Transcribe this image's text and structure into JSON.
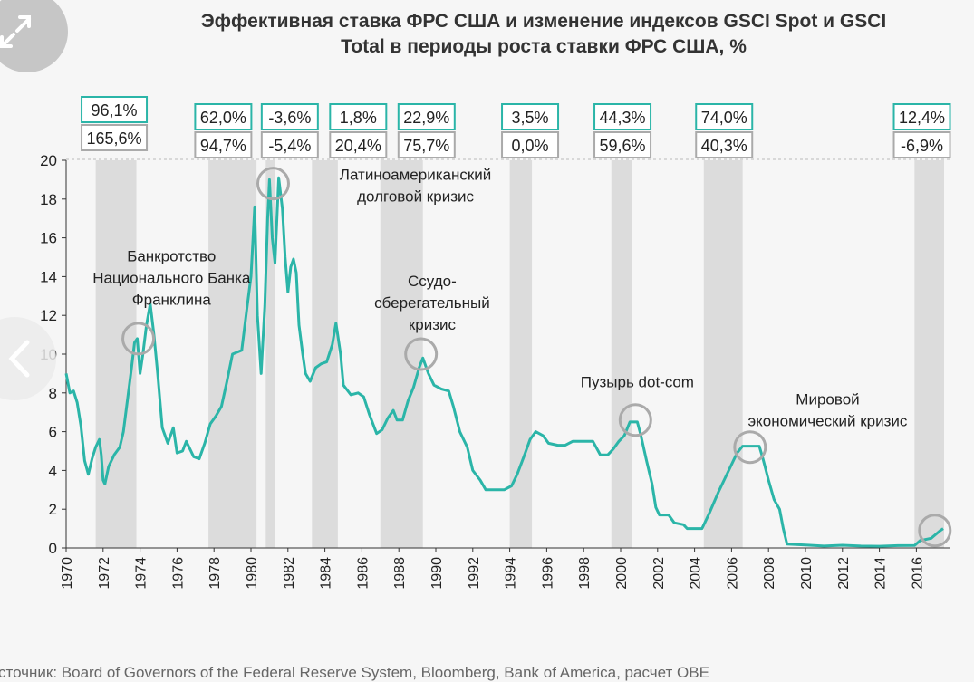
{
  "chart_data": {
    "type": "line",
    "title": "Эффективная ставка ФРС США и изменение индексов GSCI Spot и GSCI Total в периоды роста ставки ФРС США, %",
    "title_lines": [
      "Эффективная ставка ФРС США и изменение индексов GSCI Spot и GSCI",
      "Total в периоды роста ставки ФРС США, %"
    ],
    "xlim": [
      1970,
      2017.7
    ],
    "ylim": [
      0,
      20
    ],
    "x_ticks": [
      "1970",
      "1972",
      "1974",
      "1976",
      "1978",
      "1980",
      "1982",
      "1984",
      "1986",
      "1988",
      "1990",
      "1992",
      "1994",
      "1996",
      "1998",
      "2000",
      "2002",
      "2004",
      "2006",
      "2008",
      "2010",
      "2012",
      "2014",
      "2016"
    ],
    "y_ticks": [
      "0",
      "2",
      "4",
      "6",
      "8",
      "10",
      "12",
      "14",
      "16",
      "18",
      "20"
    ],
    "grid": false,
    "line_color": "#2bb5a8",
    "shade_color": "#dcdcdc",
    "series": [
      {
        "points": [
          [
            1970.0,
            9.0
          ],
          [
            1970.2,
            8.0
          ],
          [
            1970.4,
            8.1
          ],
          [
            1970.6,
            7.5
          ],
          [
            1970.8,
            6.3
          ],
          [
            1971.0,
            4.5
          ],
          [
            1971.2,
            3.8
          ],
          [
            1971.4,
            4.6
          ],
          [
            1971.6,
            5.2
          ],
          [
            1971.8,
            5.6
          ],
          [
            1971.9,
            4.8
          ],
          [
            1972.0,
            3.5
          ],
          [
            1972.1,
            3.3
          ],
          [
            1972.3,
            4.2
          ],
          [
            1972.6,
            4.8
          ],
          [
            1972.9,
            5.2
          ],
          [
            1973.1,
            6.0
          ],
          [
            1973.3,
            7.5
          ],
          [
            1973.5,
            9.0
          ],
          [
            1973.7,
            10.6
          ],
          [
            1973.85,
            10.8
          ],
          [
            1974.0,
            9.0
          ],
          [
            1974.15,
            10.0
          ],
          [
            1974.35,
            11.5
          ],
          [
            1974.55,
            12.6
          ],
          [
            1974.75,
            11.0
          ],
          [
            1974.95,
            9.0
          ],
          [
            1975.2,
            6.2
          ],
          [
            1975.5,
            5.4
          ],
          [
            1975.8,
            6.2
          ],
          [
            1976.0,
            4.9
          ],
          [
            1976.3,
            5.0
          ],
          [
            1976.5,
            5.5
          ],
          [
            1976.9,
            4.7
          ],
          [
            1977.2,
            4.6
          ],
          [
            1977.5,
            5.4
          ],
          [
            1977.8,
            6.4
          ],
          [
            1978.1,
            6.8
          ],
          [
            1978.4,
            7.3
          ],
          [
            1978.7,
            8.6
          ],
          [
            1979.0,
            10.0
          ],
          [
            1979.5,
            10.2
          ],
          [
            1979.8,
            12.5
          ],
          [
            1980.0,
            14.0
          ],
          [
            1980.2,
            17.6
          ],
          [
            1980.35,
            12.0
          ],
          [
            1980.55,
            9.0
          ],
          [
            1980.75,
            12.5
          ],
          [
            1980.9,
            17.0
          ],
          [
            1981.0,
            19.0
          ],
          [
            1981.15,
            16.0
          ],
          [
            1981.3,
            14.7
          ],
          [
            1981.5,
            19.1
          ],
          [
            1981.7,
            17.5
          ],
          [
            1981.85,
            15.0
          ],
          [
            1982.0,
            13.2
          ],
          [
            1982.15,
            14.5
          ],
          [
            1982.3,
            14.9
          ],
          [
            1982.45,
            14.2
          ],
          [
            1982.6,
            11.5
          ],
          [
            1982.8,
            10.0
          ],
          [
            1982.95,
            9.0
          ],
          [
            1983.2,
            8.6
          ],
          [
            1983.5,
            9.3
          ],
          [
            1983.8,
            9.5
          ],
          [
            1984.1,
            9.6
          ],
          [
            1984.4,
            10.5
          ],
          [
            1984.6,
            11.6
          ],
          [
            1984.85,
            10.0
          ],
          [
            1985.0,
            8.4
          ],
          [
            1985.4,
            7.9
          ],
          [
            1985.8,
            8.0
          ],
          [
            1986.1,
            7.8
          ],
          [
            1986.4,
            6.9
          ],
          [
            1986.8,
            5.9
          ],
          [
            1987.1,
            6.1
          ],
          [
            1987.4,
            6.7
          ],
          [
            1987.7,
            7.1
          ],
          [
            1987.9,
            6.6
          ],
          [
            1988.2,
            6.6
          ],
          [
            1988.5,
            7.6
          ],
          [
            1988.8,
            8.3
          ],
          [
            1989.1,
            9.3
          ],
          [
            1989.3,
            9.8
          ],
          [
            1989.6,
            9.0
          ],
          [
            1989.9,
            8.4
          ],
          [
            1990.3,
            8.2
          ],
          [
            1990.7,
            8.1
          ],
          [
            1990.95,
            7.3
          ],
          [
            1991.3,
            6.0
          ],
          [
            1991.7,
            5.2
          ],
          [
            1992.0,
            4.0
          ],
          [
            1992.4,
            3.5
          ],
          [
            1992.7,
            3.0
          ],
          [
            1993.2,
            3.0
          ],
          [
            1993.7,
            3.0
          ],
          [
            1994.1,
            3.2
          ],
          [
            1994.4,
            3.8
          ],
          [
            1994.8,
            4.8
          ],
          [
            1995.1,
            5.6
          ],
          [
            1995.4,
            6.0
          ],
          [
            1995.8,
            5.8
          ],
          [
            1996.1,
            5.4
          ],
          [
            1996.6,
            5.3
          ],
          [
            1997.0,
            5.3
          ],
          [
            1997.4,
            5.5
          ],
          [
            1997.9,
            5.5
          ],
          [
            1998.5,
            5.5
          ],
          [
            1998.9,
            4.8
          ],
          [
            1999.3,
            4.8
          ],
          [
            1999.6,
            5.1
          ],
          [
            1999.9,
            5.5
          ],
          [
            2000.2,
            5.8
          ],
          [
            2000.5,
            6.5
          ],
          [
            2000.9,
            6.5
          ],
          [
            2001.1,
            5.8
          ],
          [
            2001.4,
            4.5
          ],
          [
            2001.7,
            3.3
          ],
          [
            2001.9,
            2.1
          ],
          [
            2002.1,
            1.7
          ],
          [
            2002.6,
            1.7
          ],
          [
            2002.9,
            1.3
          ],
          [
            2003.4,
            1.2
          ],
          [
            2003.6,
            1.0
          ],
          [
            2004.4,
            1.0
          ],
          [
            2004.8,
            1.8
          ],
          [
            2005.3,
            2.9
          ],
          [
            2005.8,
            3.9
          ],
          [
            2006.3,
            4.9
          ],
          [
            2006.6,
            5.25
          ],
          [
            2007.5,
            5.25
          ],
          [
            2007.7,
            4.6
          ],
          [
            2008.0,
            3.5
          ],
          [
            2008.3,
            2.5
          ],
          [
            2008.6,
            2.0
          ],
          [
            2008.8,
            1.0
          ],
          [
            2009.0,
            0.2
          ],
          [
            2010.0,
            0.15
          ],
          [
            2011.0,
            0.1
          ],
          [
            2012.0,
            0.14
          ],
          [
            2013.0,
            0.1
          ],
          [
            2014.0,
            0.09
          ],
          [
            2015.0,
            0.12
          ],
          [
            2015.9,
            0.13
          ],
          [
            2016.2,
            0.38
          ],
          [
            2016.8,
            0.5
          ],
          [
            2017.0,
            0.66
          ],
          [
            2017.3,
            0.9
          ],
          [
            2017.45,
            1.0
          ]
        ]
      }
    ],
    "rate_hike_periods": [
      [
        1971.6,
        1973.8
      ],
      [
        1977.7,
        1980.3
      ],
      [
        1980.8,
        1981.3
      ],
      [
        1983.3,
        1984.7
      ],
      [
        1987.0,
        1989.3
      ],
      [
        1994.0,
        1995.2
      ],
      [
        1999.5,
        2000.6
      ],
      [
        2004.5,
        2006.6
      ],
      [
        2015.9,
        2017.5
      ]
    ],
    "period_labels": [
      {
        "year": 1972.6,
        "gsci_spot": "96,1%",
        "gsci_total": "165,6%"
      },
      {
        "year": 1978.5,
        "gsci_spot": "62,0%",
        "gsci_total": "94,7%"
      },
      {
        "year": 1982.1,
        "gsci_spot": "-3,6%",
        "gsci_total": "-5,4%"
      },
      {
        "year": 1985.8,
        "gsci_spot": "1,8%",
        "gsci_total": "20,4%"
      },
      {
        "year": 1989.5,
        "gsci_spot": "22,9%",
        "gsci_total": "75,7%"
      },
      {
        "year": 1995.1,
        "gsci_spot": "3,5%",
        "gsci_total": "0,0%"
      },
      {
        "year": 2000.1,
        "gsci_spot": "44,3%",
        "gsci_total": "59,6%"
      },
      {
        "year": 2005.6,
        "gsci_spot": "74,0%",
        "gsci_total": "40,3%"
      },
      {
        "year": 2016.3,
        "gsci_spot": "12,4%",
        "gsci_total": "-6,9%"
      }
    ],
    "annotations": [
      {
        "lines": [
          "Банкротство",
          "Национального Банка",
          "Франклина"
        ],
        "x": 1975.7,
        "y": 14.8,
        "circle": [
          1973.9,
          10.8
        ]
      },
      {
        "lines": [
          "Латиноамериканский",
          "долговой кризис"
        ],
        "x": 1988.9,
        "y": 19.0,
        "circle": [
          1981.2,
          18.8
        ]
      },
      {
        "lines": [
          "Ссудо-",
          "сберегательный",
          "кризис"
        ],
        "x": 1989.8,
        "y": 13.5,
        "circle": [
          1989.2,
          10.0
        ]
      },
      {
        "lines": [
          "Пузырь dot-com"
        ],
        "x": 2000.9,
        "y": 8.3,
        "circle": [
          2000.8,
          6.6
        ]
      },
      {
        "lines": [
          "Мировой",
          "экономический кризис"
        ],
        "x": 2011.2,
        "y": 7.4,
        "circle": [
          2007.0,
          5.2
        ]
      },
      {
        "lines": [],
        "x": 2017.0,
        "y": 0.9,
        "circle": [
          2017.0,
          0.9
        ]
      }
    ]
  },
  "source": "сточник: Board of Governors of the Federal Reserve System, Bloomberg, Bank of America, расчет OBE",
  "overlay": {
    "expand_icon": "expand-arrows-icon",
    "prev_icon": "chevron-left-icon"
  }
}
